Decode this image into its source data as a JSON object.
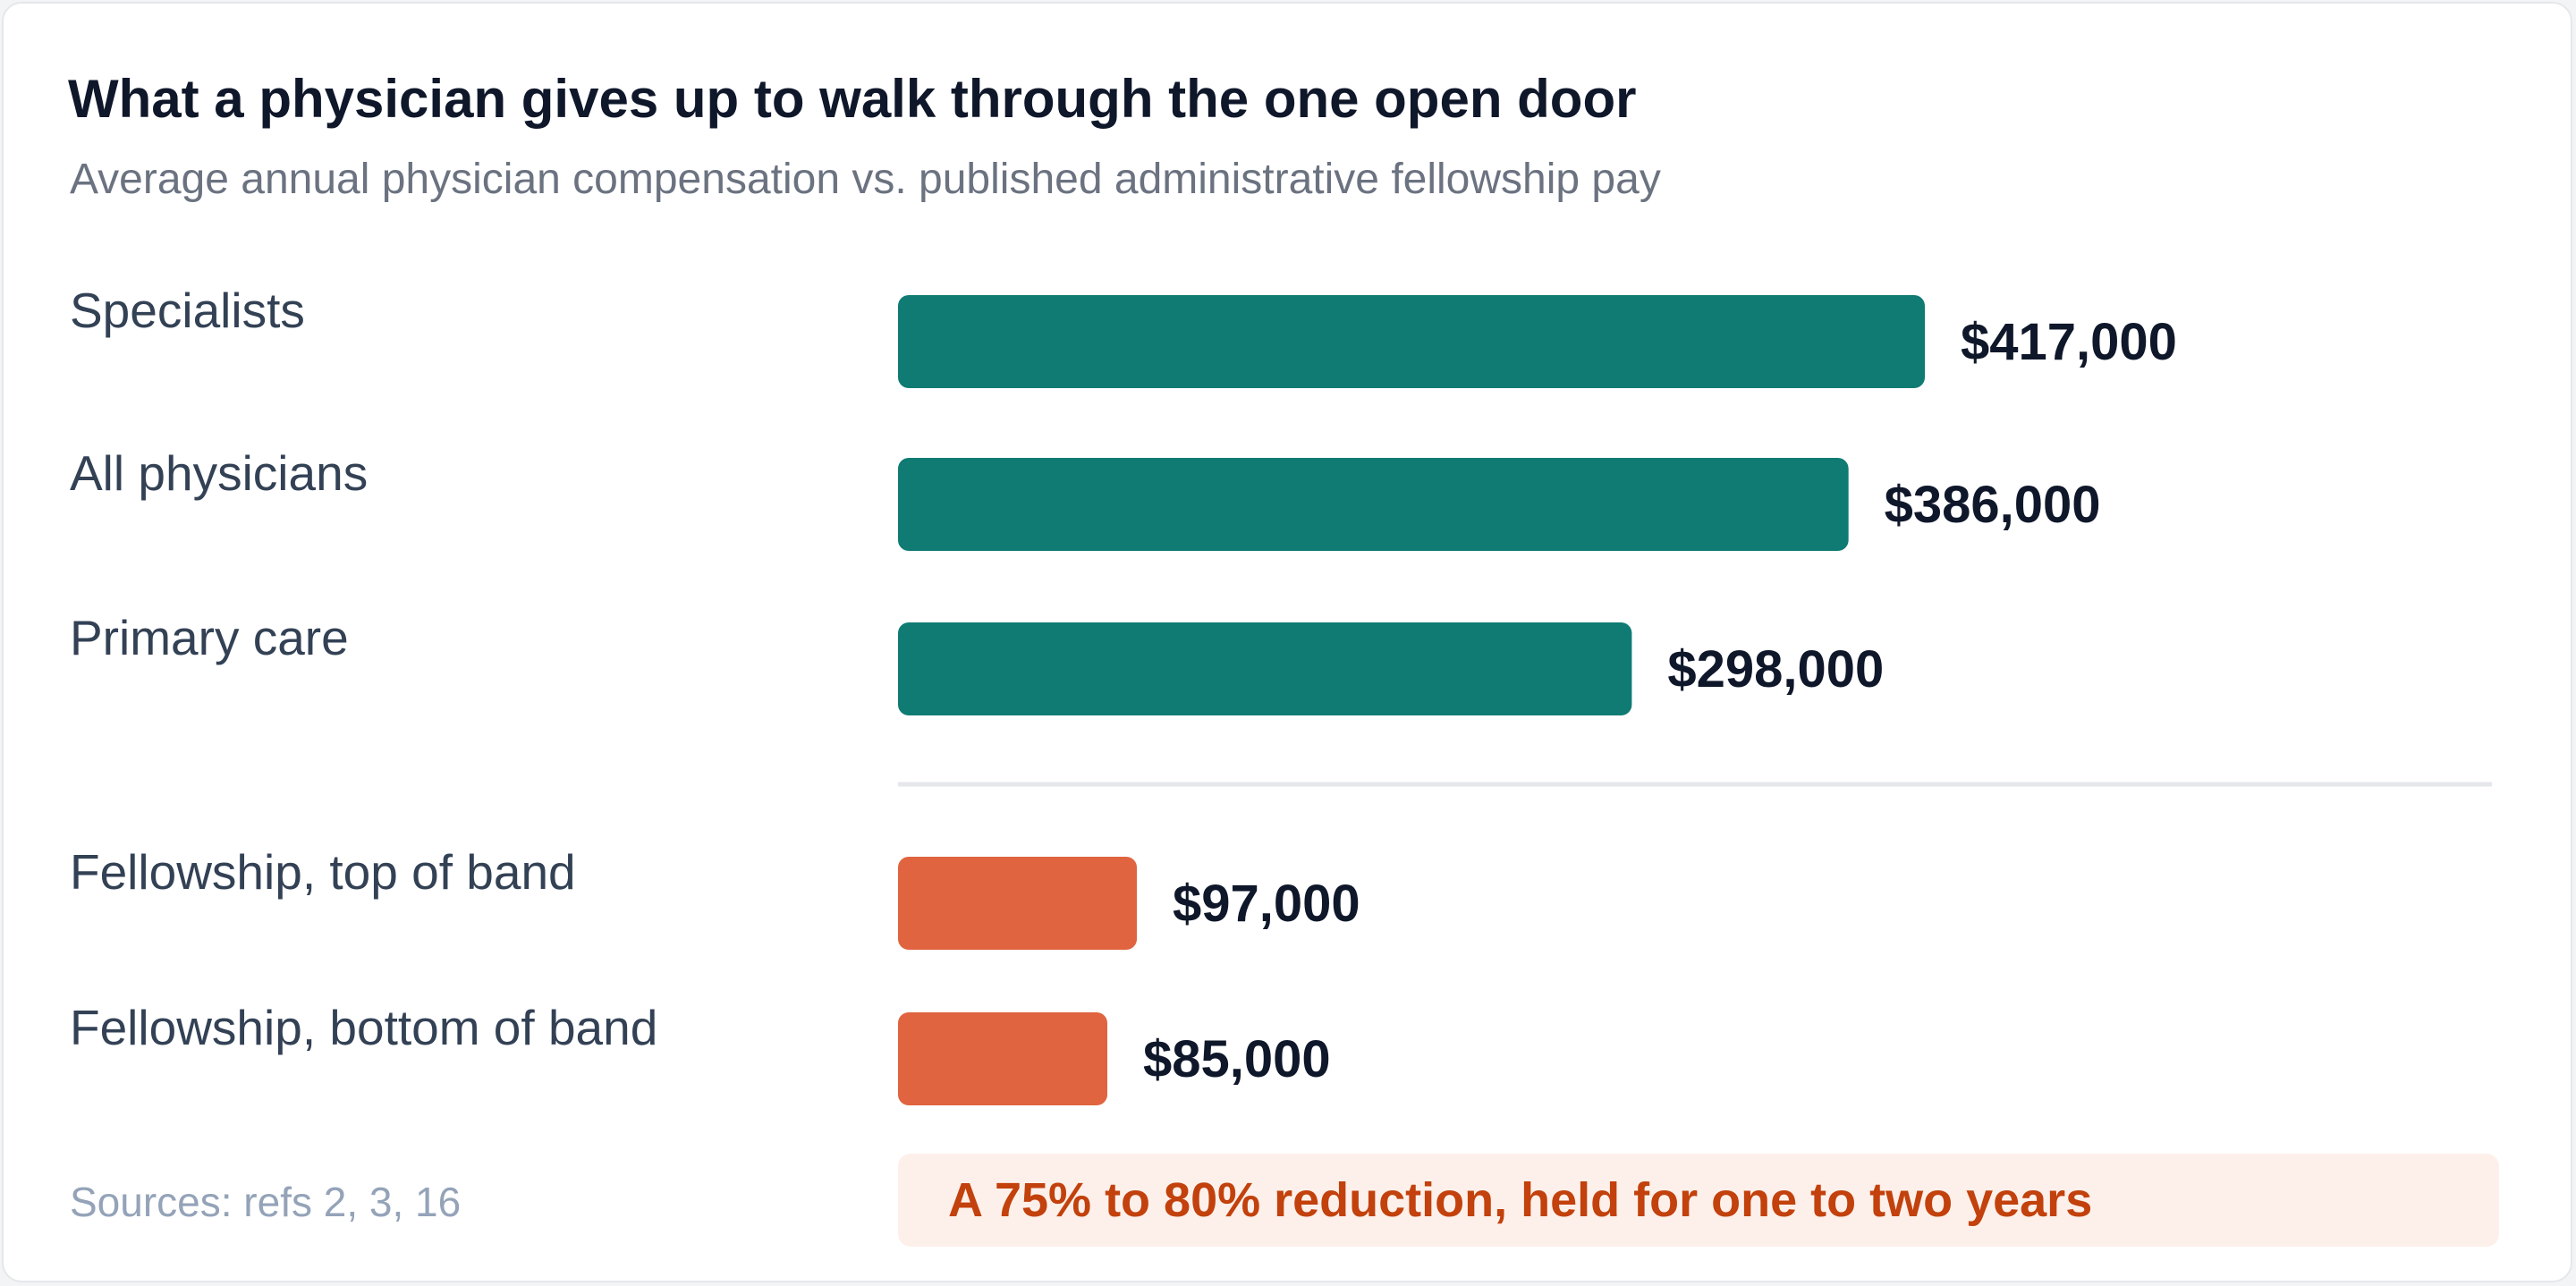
{
  "header": {
    "title": "What a physician gives up to walk through the one open door",
    "subtitle": "Average annual physician compensation vs. published administrative fellowship pay"
  },
  "chart_data": {
    "type": "bar",
    "orientation": "horizontal",
    "title": "What a physician gives up to walk through the one open door",
    "subtitle": "Average annual physician compensation vs. published administrative fellowship pay",
    "categories": [
      "Specialists",
      "All physicians",
      "Primary care",
      "Fellowship, top of band",
      "Fellowship, bottom of band"
    ],
    "values": [
      417000,
      386000,
      298000,
      97000,
      85000
    ],
    "value_labels": [
      "$417,000",
      "$386,000",
      "$298,000",
      "$97,000",
      "$85,000"
    ],
    "groups": [
      {
        "categories": [
          "Specialists",
          "All physicians",
          "Primary care"
        ],
        "color": "#0f7b73"
      },
      {
        "categories": [
          "Fellowship, top of band",
          "Fellowship, bottom of band"
        ],
        "color": "#e0643f"
      }
    ],
    "xlim": [
      0,
      417000
    ],
    "grid": false,
    "legend": "none",
    "divider_between_groups": true
  },
  "footer": {
    "source": "Sources: refs 2, 3, 16",
    "callout": "A 75% to 80% reduction, held for one to two years"
  },
  "colors": {
    "physician": "#0f7b73",
    "fellowship": "#e0643f",
    "callout_text": "#c2410c",
    "callout_bg": "#fdf0ea"
  }
}
